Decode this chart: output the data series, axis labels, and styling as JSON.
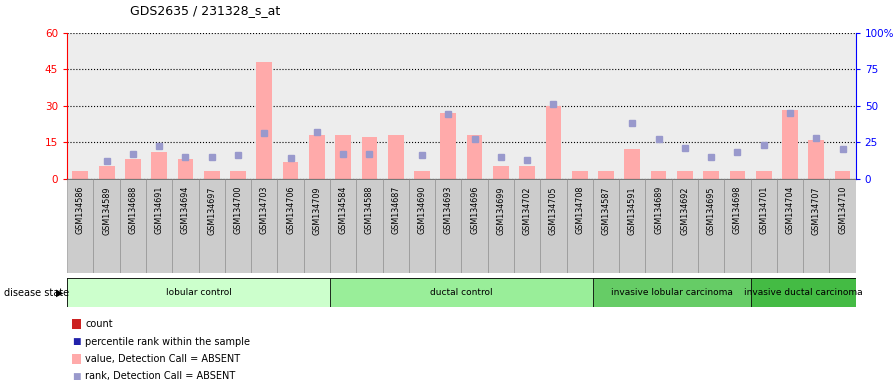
{
  "title": "GDS2635 / 231328_s_at",
  "samples": [
    "GSM134586",
    "GSM134589",
    "GSM134688",
    "GSM134691",
    "GSM134694",
    "GSM134697",
    "GSM134700",
    "GSM134703",
    "GSM134706",
    "GSM134709",
    "GSM134584",
    "GSM134588",
    "GSM134687",
    "GSM134690",
    "GSM134693",
    "GSM134696",
    "GSM134699",
    "GSM134702",
    "GSM134705",
    "GSM134708",
    "GSM134587",
    "GSM134591",
    "GSM134689",
    "GSM134692",
    "GSM134695",
    "GSM134698",
    "GSM134701",
    "GSM134704",
    "GSM134707",
    "GSM134710"
  ],
  "count_values": [
    3,
    5,
    8,
    11,
    8,
    3,
    3,
    48,
    7,
    18,
    18,
    17,
    18,
    3,
    27,
    18,
    5,
    5,
    30,
    3,
    3,
    12,
    3,
    3,
    3,
    3,
    3,
    28,
    16,
    3
  ],
  "rank_values": [
    null,
    12,
    17,
    22,
    15,
    15,
    16,
    31,
    14,
    32,
    17,
    17,
    null,
    16,
    44,
    27,
    15,
    13,
    51,
    null,
    null,
    38,
    27,
    21,
    15,
    18,
    23,
    45,
    28,
    20
  ],
  "absent_flags": [
    true,
    true,
    true,
    true,
    true,
    true,
    true,
    true,
    true,
    true,
    true,
    true,
    true,
    true,
    true,
    true,
    true,
    true,
    true,
    true,
    true,
    true,
    true,
    true,
    true,
    true,
    true,
    true,
    true,
    true
  ],
  "groups": [
    {
      "label": "lobular control",
      "start": 0,
      "end": 9,
      "color": "#ccffcc"
    },
    {
      "label": "ductal control",
      "start": 10,
      "end": 19,
      "color": "#99ee99"
    },
    {
      "label": "invasive lobular carcinoma",
      "start": 20,
      "end": 25,
      "color": "#66cc66"
    },
    {
      "label": "invasive ductal carcinoma",
      "start": 26,
      "end": 29,
      "color": "#44bb44"
    }
  ],
  "ylim_left": [
    0,
    60
  ],
  "ylim_right": [
    0,
    100
  ],
  "yticks_left": [
    0,
    15,
    30,
    45,
    60
  ],
  "yticks_right": [
    0,
    25,
    50,
    75,
    100
  ],
  "bar_color_absent": "#ffaaaa",
  "bar_color_present": "#cc2222",
  "marker_color_absent": "#9999cc",
  "marker_color_present": "#2222aa",
  "col_bg_color": "#cccccc",
  "bg_color": "#ffffff",
  "legend_items": [
    {
      "color": "#cc2222",
      "kind": "bar",
      "label": "count"
    },
    {
      "color": "#2222aa",
      "kind": "marker",
      "label": "percentile rank within the sample"
    },
    {
      "color": "#ffaaaa",
      "kind": "bar",
      "label": "value, Detection Call = ABSENT"
    },
    {
      "color": "#9999cc",
      "kind": "marker",
      "label": "rank, Detection Call = ABSENT"
    }
  ]
}
